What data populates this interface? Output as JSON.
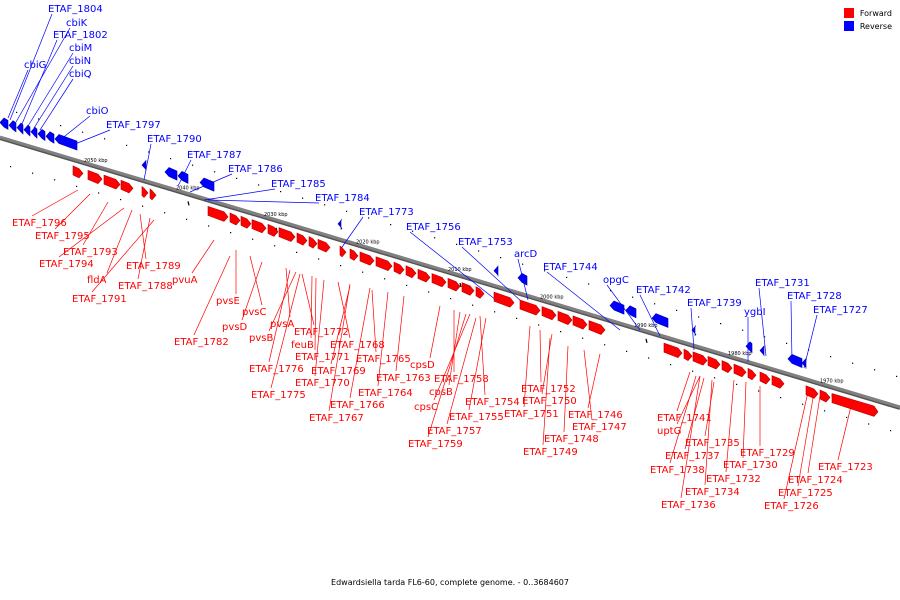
{
  "caption": "Edwardsiella tarda FL6-60, complete genome. - 0..3684607",
  "legend": [
    {
      "label": "Forward",
      "color": "#ff0000"
    },
    {
      "label": "Reverse",
      "color": "#0000ff"
    }
  ],
  "colors": {
    "forward": "#ff0000",
    "reverse": "#0000ff",
    "backbone": "#808080"
  },
  "ticks": [
    "2050 kbp",
    "2040 kbp",
    "2030 kbp",
    "2020 kbp",
    "2010 kbp",
    "2000 kbp",
    "1990 kbp",
    "1980 kbp",
    "1970 kbp"
  ],
  "reverse_genes": [
    {
      "label": "ETAF_1804"
    },
    {
      "label": "cbiK"
    },
    {
      "label": "ETAF_1802"
    },
    {
      "label": "cbiM"
    },
    {
      "label": "cbiN"
    },
    {
      "label": "cbiQ"
    },
    {
      "label": "cbiG"
    },
    {
      "label": "cbiO"
    },
    {
      "label": "ETAF_1797"
    },
    {
      "label": "ETAF_1790"
    },
    {
      "label": "ETAF_1787"
    },
    {
      "label": "ETAF_1786"
    },
    {
      "label": "ETAF_1785"
    },
    {
      "label": "ETAF_1784"
    },
    {
      "label": "ETAF_1773"
    },
    {
      "label": "ETAF_1756"
    },
    {
      "label": "ETAF_1753"
    },
    {
      "label": "arcD"
    },
    {
      "label": "ETAF_1744"
    },
    {
      "label": "opgC"
    },
    {
      "label": "ETAF_1742"
    },
    {
      "label": "ETAF_1739"
    },
    {
      "label": "ygbI"
    },
    {
      "label": "ETAF_1731"
    },
    {
      "label": "ETAF_1728"
    },
    {
      "label": "ETAF_1727"
    }
  ],
  "forward_genes": [
    {
      "label": "ETAF_1796"
    },
    {
      "label": "ETAF_1795"
    },
    {
      "label": "ETAF_1793"
    },
    {
      "label": "ETAF_1794"
    },
    {
      "label": "fldA"
    },
    {
      "label": "ETAF_1789"
    },
    {
      "label": "ETAF_1788"
    },
    {
      "label": "ETAF_1791"
    },
    {
      "label": "pvuA"
    },
    {
      "label": "pvsE"
    },
    {
      "label": "pvsC"
    },
    {
      "label": "pvsD"
    },
    {
      "label": "pvsA"
    },
    {
      "label": "pvsB"
    },
    {
      "label": "ETAF_1782"
    },
    {
      "label": "ETAF_1772"
    },
    {
      "label": "feuB"
    },
    {
      "label": "ETAF_1768"
    },
    {
      "label": "ETAF_1771"
    },
    {
      "label": "ETAF_1776"
    },
    {
      "label": "ETAF_1769"
    },
    {
      "label": "ETAF_1765"
    },
    {
      "label": "ETAF_1770"
    },
    {
      "label": "ETAF_1775"
    },
    {
      "label": "ETAF_1763"
    },
    {
      "label": "ETAF_1764"
    },
    {
      "label": "ETAF_1766"
    },
    {
      "label": "ETAF_1767"
    },
    {
      "label": "cpsD"
    },
    {
      "label": "ETAF_1758"
    },
    {
      "label": "cpsB"
    },
    {
      "label": "ETAF_1754"
    },
    {
      "label": "cpsC"
    },
    {
      "label": "ETAF_1755"
    },
    {
      "label": "ETAF_1757"
    },
    {
      "label": "ETAF_1759"
    },
    {
      "label": "ETAF_1752"
    },
    {
      "label": "ETAF_1750"
    },
    {
      "label": "ETAF_1751"
    },
    {
      "label": "ETAF_1746"
    },
    {
      "label": "ETAF_1747"
    },
    {
      "label": "ETAF_1748"
    },
    {
      "label": "ETAF_1749"
    },
    {
      "label": "ETAF_1741"
    },
    {
      "label": "uptG"
    },
    {
      "label": "ETAF_1735"
    },
    {
      "label": "ETAF_1737"
    },
    {
      "label": "ETAF_1738"
    },
    {
      "label": "ETAF_1729"
    },
    {
      "label": "ETAF_1730"
    },
    {
      "label": "ETAF_1732"
    },
    {
      "label": "ETAF_1734"
    },
    {
      "label": "ETAF_1736"
    },
    {
      "label": "ETAF_1723"
    },
    {
      "label": "ETAF_1724"
    },
    {
      "label": "ETAF_1725"
    },
    {
      "label": "ETAF_1726"
    }
  ]
}
